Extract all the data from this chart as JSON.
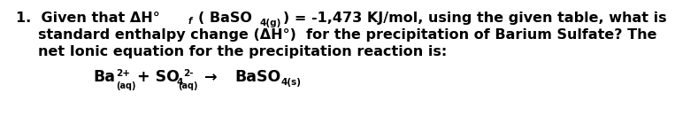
{
  "background_color": "#ffffff",
  "text_color": "#000000",
  "font_weight": "bold",
  "font_family": "Arial",
  "fs_main": 11.5,
  "fs_eq": 12.5,
  "fs_small": 8.0,
  "fs_sub": 7.5,
  "line1a": "1.  Given that ΔH°",
  "line1b": "f",
  "line1c": "( BaSO",
  "line1d": "4(g)",
  "line1e": ") = -1,473 KJ/mol, using the given table, what is",
  "line2": "standard enthalpy change (ΔH°)  for the precipitation of Barium Sulfate? The",
  "line3": "net Ionic equation for the precipitation reaction is:",
  "eq_ba": "Ba",
  "eq_ba_sup": "2+",
  "eq_ba_sub": "(aq)",
  "eq_plus_so": "+ SO",
  "eq_so_sub": "4",
  "eq_so_sup": "2-",
  "eq_so_aq": "(aq)",
  "eq_arrow": "→",
  "eq_baso": "BaSO",
  "eq_baso_sub": "4(s)"
}
